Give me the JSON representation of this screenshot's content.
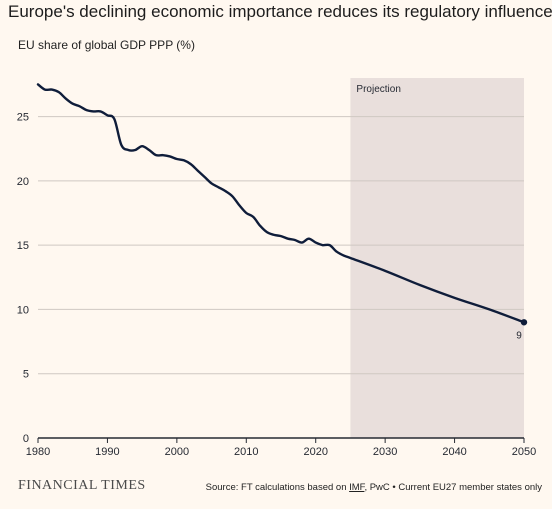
{
  "header": {
    "title": "Europe's declining economic importance reduces its regulatory influence",
    "subtitle": "EU share of global GDP PPP (%)"
  },
  "footer": {
    "brand": "FINANCIAL TIMES",
    "source_prefix": "Source: FT calculations based on ",
    "source_link": "IMF",
    "source_suffix": ", PwC • Current EU27 member states only"
  },
  "colors": {
    "background": "#fff8f0",
    "line": "#0f1d3a",
    "projection_shade": "#e9dfdc",
    "grid": "#cfc8c2",
    "axis": "#262a33"
  },
  "chart_data": {
    "type": "line",
    "title": "Europe's declining economic importance reduces its regulatory influence",
    "ylabel": "EU share of global GDP PPP (%)",
    "xlabel": "",
    "xlim": [
      1980,
      2050
    ],
    "ylim": [
      0,
      28
    ],
    "xticks": [
      1980,
      1990,
      2000,
      2010,
      2020,
      2030,
      2040,
      2050
    ],
    "yticks": [
      0,
      5,
      10,
      15,
      20,
      25
    ],
    "grid": "horizontal",
    "projection": {
      "label": "Projection",
      "start": 2025,
      "end": 2050
    },
    "end_label": "9",
    "series": [
      {
        "x": [
          1980,
          1981,
          1982,
          1983,
          1984,
          1985,
          1986,
          1987,
          1988,
          1989,
          1990,
          1991,
          1992,
          1993,
          1994,
          1995,
          1996,
          1997,
          1998,
          1999,
          2000,
          2001,
          2002,
          2003,
          2004,
          2005,
          2006,
          2007,
          2008,
          2009,
          2010,
          2011,
          2012,
          2013,
          2014,
          2015,
          2016,
          2017,
          2018,
          2019,
          2020,
          2021,
          2022,
          2023,
          2024,
          2025,
          2030,
          2035,
          2040,
          2045,
          2050
        ],
        "values": [
          27.5,
          27.1,
          27.1,
          26.9,
          26.4,
          26.0,
          25.8,
          25.5,
          25.4,
          25.4,
          25.1,
          24.8,
          22.8,
          22.4,
          22.4,
          22.7,
          22.4,
          22.0,
          22.0,
          21.9,
          21.7,
          21.6,
          21.3,
          20.8,
          20.3,
          19.8,
          19.5,
          19.2,
          18.8,
          18.1,
          17.5,
          17.2,
          16.5,
          16.0,
          15.8,
          15.7,
          15.5,
          15.4,
          15.2,
          15.5,
          15.2,
          15.0,
          15.0,
          14.5,
          14.2,
          14.0,
          13.0,
          11.9,
          10.9,
          10.0,
          9.0
        ]
      }
    ]
  }
}
